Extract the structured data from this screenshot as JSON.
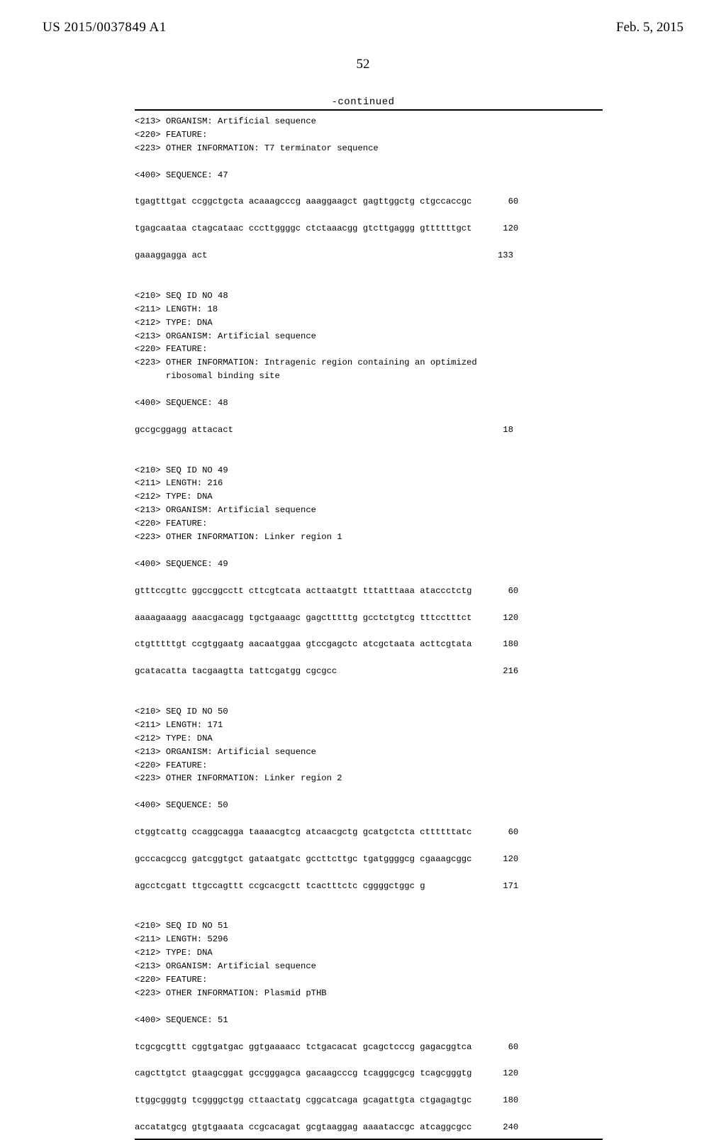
{
  "header": {
    "publication_number": "US 2015/0037849 A1",
    "publication_date": "Feb. 5, 2015"
  },
  "page_number": "52",
  "continued_label": "-continued",
  "seq_text": "<213> ORGANISM: Artificial sequence\n<220> FEATURE:\n<223> OTHER INFORMATION: T7 terminator sequence\n\n<400> SEQUENCE: 47\n\ntgagtttgat ccggctgcta acaaagcccg aaaggaagct gagttggctg ctgccaccgc       60\n\ntgagcaataa ctagcataac cccttggggc ctctaaacgg gtcttgaggg gttttttgct      120\n\ngaaaggagga act                                                        133\n\n\n<210> SEQ ID NO 48\n<211> LENGTH: 18\n<212> TYPE: DNA\n<213> ORGANISM: Artificial sequence\n<220> FEATURE:\n<223> OTHER INFORMATION: Intragenic region containing an optimized\n      ribosomal binding site\n\n<400> SEQUENCE: 48\n\ngccgcggagg attacact                                                    18\n\n\n<210> SEQ ID NO 49\n<211> LENGTH: 216\n<212> TYPE: DNA\n<213> ORGANISM: Artificial sequence\n<220> FEATURE:\n<223> OTHER INFORMATION: Linker region 1\n\n<400> SEQUENCE: 49\n\ngtttccgttc ggccggcctt cttcgtcata acttaatgtt tttatttaaa ataccctctg       60\n\naaaagaaagg aaacgacagg tgctgaaagc gagctttttg gcctctgtcg tttcctttct      120\n\nctgtttttgt ccgtggaatg aacaatggaa gtccgagctc atcgctaata acttcgtata      180\n\ngcatacatta tacgaagtta tattcgatgg cgcgcc                                216\n\n\n<210> SEQ ID NO 50\n<211> LENGTH: 171\n<212> TYPE: DNA\n<213> ORGANISM: Artificial sequence\n<220> FEATURE:\n<223> OTHER INFORMATION: Linker region 2\n\n<400> SEQUENCE: 50\n\nctggtcattg ccaggcagga taaaacgtcg atcaacgctg gcatgctcta cttttttatc       60\n\ngcccacgccg gatcggtgct gataatgatc gccttcttgc tgatggggcg cgaaagcggc      120\n\nagcctcgatt ttgccagttt ccgcacgctt tcactttctc cggggctggc g               171\n\n\n<210> SEQ ID NO 51\n<211> LENGTH: 5296\n<212> TYPE: DNA\n<213> ORGANISM: Artificial sequence\n<220> FEATURE:\n<223> OTHER INFORMATION: Plasmid pTHB\n\n<400> SEQUENCE: 51\n\ntcgcgcgttt cggtgatgac ggtgaaaacc tctgacacat gcagctcccg gagacggtca       60\n\ncagcttgtct gtaagcggat gccgggagca gacaagcccg tcagggcgcg tcagcgggtg      120\n\nttggcgggtg tcggggctgg cttaactatg cggcatcaga gcagattgta ctgagagtgc      180\n\naccatatgcg gtgtgaaata ccgcacagat gcgtaaggag aaaataccgc atcaggcgcc      240"
}
